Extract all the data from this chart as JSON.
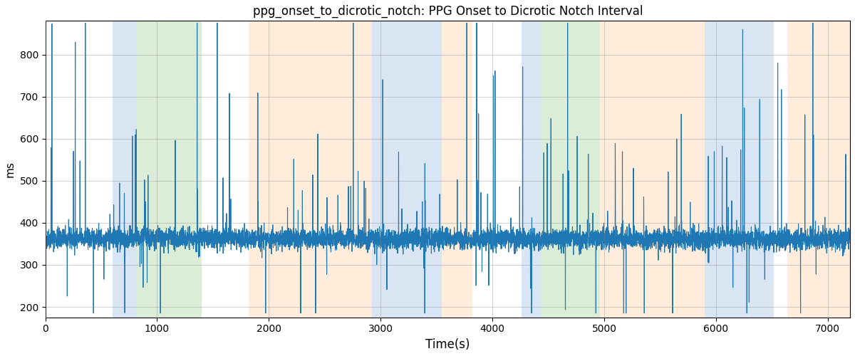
{
  "title": "ppg_onset_to_dicrotic_notch: PPG Onset to Dicrotic Notch Interval",
  "xlabel": "Time(s)",
  "ylabel": "ms",
  "xlim": [
    0,
    7200
  ],
  "ylim": [
    175,
    880
  ],
  "yticks": [
    200,
    300,
    400,
    500,
    600,
    700,
    800
  ],
  "xticks": [
    0,
    1000,
    2000,
    3000,
    4000,
    5000,
    6000,
    7000
  ],
  "line_color": "#1f77b4",
  "line_width": 0.8,
  "background_color": "#ffffff",
  "bands": [
    {
      "xmin": 600,
      "xmax": 820,
      "color": "#aec6e8"
    },
    {
      "xmin": 820,
      "xmax": 1400,
      "color": "#b2d8a8"
    },
    {
      "xmin": 1820,
      "xmax": 2050,
      "color": "#ffd9b0"
    },
    {
      "xmin": 2050,
      "xmax": 2920,
      "color": "#ffd9b0"
    },
    {
      "xmin": 2920,
      "xmax": 3550,
      "color": "#aec6e8"
    },
    {
      "xmin": 3550,
      "xmax": 3820,
      "color": "#ffd9b0"
    },
    {
      "xmin": 4260,
      "xmax": 4430,
      "color": "#aec6e8"
    },
    {
      "xmin": 4430,
      "xmax": 4960,
      "color": "#b2d8a8"
    },
    {
      "xmin": 4960,
      "xmax": 5280,
      "color": "#ffd9b0"
    },
    {
      "xmin": 5280,
      "xmax": 5900,
      "color": "#ffd9b0"
    },
    {
      "xmin": 5900,
      "xmax": 6520,
      "color": "#aec6e8"
    },
    {
      "xmin": 6640,
      "xmax": 7200,
      "color": "#ffd9b0"
    }
  ],
  "alpha": 0.45,
  "seed": 42,
  "n_points": 7200,
  "base_value": 362,
  "noise_std": 12,
  "spike_prob": 0.018,
  "spike_up_scale": 180,
  "spike_down_prob": 0.01,
  "spike_down_scale": 90
}
